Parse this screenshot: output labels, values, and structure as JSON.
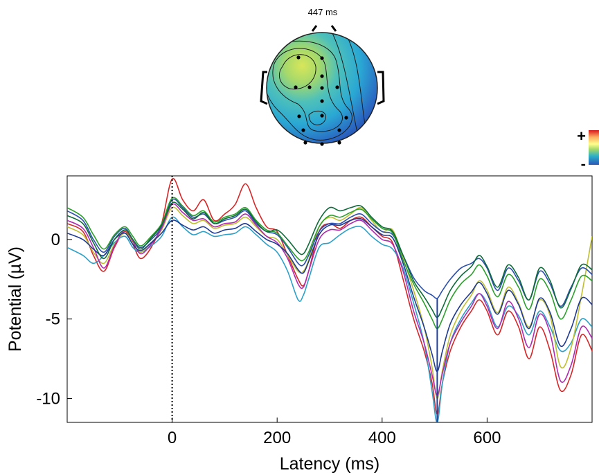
{
  "topomap": {
    "title": "447 ms",
    "electrodes": 16
  },
  "colorbar": {
    "plus_label": "+",
    "minus_label": "-",
    "colors": [
      "#d7191c",
      "#fdae61",
      "#ffff8c",
      "#a6d96a",
      "#2bb0c8",
      "#2c55b8"
    ]
  },
  "chart_data": {
    "type": "line",
    "title": "",
    "xlabel": "Latency (ms)",
    "ylabel": "Potential (µV)",
    "xlim": [
      -200,
      800
    ],
    "ylim": [
      -11.5,
      4
    ],
    "xticks": [
      0,
      200,
      400,
      600
    ],
    "yticks": [
      0,
      -5,
      -10
    ],
    "xtick_labels": [
      "0",
      "200",
      "400",
      "600"
    ],
    "ytick_labels": [
      "0",
      "-5",
      "-10"
    ],
    "grid": false,
    "legend": "none",
    "onset_marker_x": 0,
    "cursor_x": 505,
    "x": [
      -200,
      -170,
      -150,
      -130,
      -110,
      -90,
      -75,
      -60,
      -40,
      -20,
      0,
      20,
      40,
      60,
      80,
      100,
      120,
      140,
      160,
      180,
      200,
      220,
      240,
      250,
      260,
      280,
      300,
      320,
      340,
      360,
      380,
      400,
      420,
      440,
      460,
      480,
      495,
      505,
      515,
      530,
      550,
      570,
      585,
      600,
      620,
      640,
      660,
      680,
      700,
      720,
      740,
      760,
      780,
      800
    ],
    "series": [
      {
        "color": "#d62728",
        "values": [
          1.0,
          0.5,
          -1.0,
          -2.0,
          -0.5,
          0.5,
          -0.3,
          -1.2,
          -0.5,
          1.0,
          3.8,
          2.5,
          1.8,
          2.5,
          1.2,
          1.6,
          2.2,
          3.5,
          2.0,
          0.8,
          0.5,
          -1.0,
          -2.5,
          -2.9,
          -2.0,
          0.5,
          1.0,
          0.7,
          1.2,
          1.4,
          0.8,
          0.2,
          -0.2,
          -2.5,
          -5.0,
          -7.0,
          -9.0,
          -11.0,
          -9.0,
          -7.0,
          -5.5,
          -4.5,
          -3.8,
          -4.5,
          -6.0,
          -4.5,
          -5.5,
          -7.5,
          -5.5,
          -7.0,
          -9.5,
          -8.5,
          -6.0,
          -7.0
        ]
      },
      {
        "color": "#2ca0c8",
        "values": [
          -0.5,
          -1.0,
          -1.5,
          -1.0,
          -0.2,
          0.2,
          -0.5,
          -0.8,
          -0.4,
          0.2,
          1.4,
          0.8,
          0.3,
          0.5,
          0.2,
          0.3,
          0.4,
          0.8,
          0.3,
          -0.3,
          -0.8,
          -2.0,
          -3.8,
          -3.5,
          -2.5,
          -0.5,
          -0.2,
          0.3,
          0.7,
          0.8,
          0.2,
          -0.3,
          -0.6,
          -1.8,
          -4.0,
          -6.5,
          -9.5,
          -11.5,
          -9.0,
          -6.5,
          -5.0,
          -4.0,
          -3.4,
          -4.0,
          -5.5,
          -4.2,
          -4.8,
          -6.0,
          -4.5,
          -5.5,
          -7.0,
          -6.5,
          -5.0,
          -5.5
        ]
      },
      {
        "color": "#bfbf30",
        "values": [
          0.8,
          0.3,
          -0.8,
          -1.5,
          -0.3,
          0.4,
          -0.2,
          -0.8,
          -0.2,
          0.6,
          2.0,
          1.5,
          1.0,
          1.2,
          0.7,
          0.9,
          1.0,
          1.4,
          0.8,
          0.2,
          0.0,
          -1.0,
          -2.0,
          -2.0,
          -1.3,
          0.8,
          1.4,
          1.2,
          1.6,
          2.0,
          1.2,
          0.5,
          0.6,
          -1.2,
          -3.2,
          -5.5,
          -8.0,
          -10.0,
          -8.2,
          -6.0,
          -4.5,
          -3.5,
          -2.6,
          -3.2,
          -4.6,
          -3.0,
          -4.0,
          -5.5,
          -3.8,
          -4.8,
          -8.0,
          -6.8,
          -3.5,
          0.2
        ]
      },
      {
        "color": "#2a4fb0",
        "values": [
          1.8,
          1.2,
          0.0,
          -0.8,
          0.2,
          0.7,
          0.0,
          -0.5,
          0.0,
          0.8,
          2.5,
          2.0,
          1.4,
          1.6,
          1.0,
          1.2,
          1.4,
          1.8,
          1.0,
          0.5,
          0.3,
          -0.5,
          -1.5,
          -1.6,
          -1.0,
          0.5,
          1.0,
          1.0,
          1.4,
          1.6,
          1.0,
          0.5,
          0.3,
          -1.0,
          -2.4,
          -3.2,
          -3.5,
          -3.7,
          -3.2,
          -2.5,
          -1.8,
          -1.5,
          -1.2,
          -1.8,
          -3.2,
          -1.8,
          -2.6,
          -3.8,
          -2.0,
          -2.8,
          -4.2,
          -3.0,
          -1.8,
          -2.2
        ]
      },
      {
        "color": "#2ca02c",
        "values": [
          2.0,
          1.4,
          0.3,
          -0.6,
          0.3,
          0.8,
          0.2,
          -0.4,
          0.2,
          1.0,
          2.6,
          2.1,
          1.5,
          1.8,
          1.1,
          1.4,
          1.6,
          2.0,
          1.2,
          0.6,
          0.4,
          -0.4,
          -1.2,
          -1.3,
          -0.8,
          0.8,
          1.5,
          1.4,
          1.7,
          1.9,
          1.3,
          0.7,
          0.4,
          -1.3,
          -2.8,
          -4.0,
          -5.0,
          -5.6,
          -5.0,
          -3.8,
          -2.8,
          -2.2,
          -1.6,
          -2.3,
          -3.6,
          -2.2,
          -3.0,
          -4.4,
          -2.5,
          -3.3,
          -5.0,
          -3.8,
          -2.3,
          -2.6
        ]
      },
      {
        "color": "#b02ab0",
        "values": [
          1.2,
          0.7,
          -0.5,
          -1.8,
          -0.4,
          0.6,
          -0.1,
          -0.9,
          -0.3,
          0.7,
          2.2,
          1.7,
          1.2,
          1.3,
          0.8,
          1.0,
          1.1,
          1.6,
          0.9,
          0.2,
          -0.2,
          -1.2,
          -2.8,
          -3.0,
          -2.0,
          0.0,
          0.6,
          0.6,
          1.0,
          1.2,
          0.6,
          0.0,
          -0.3,
          -2.0,
          -4.5,
          -6.5,
          -8.5,
          -9.8,
          -8.4,
          -6.5,
          -5.2,
          -4.2,
          -3.4,
          -4.2,
          -5.6,
          -3.9,
          -5.0,
          -6.8,
          -4.7,
          -5.9,
          -8.9,
          -7.9,
          -5.5,
          -6.2
        ]
      },
      {
        "color": "#1f3a93",
        "values": [
          0.4,
          0.0,
          -0.6,
          -1.0,
          0.0,
          0.4,
          -0.3,
          -0.7,
          -0.2,
          0.4,
          1.2,
          0.9,
          0.6,
          0.8,
          0.4,
          0.6,
          0.7,
          1.0,
          0.5,
          0.0,
          -0.3,
          -0.9,
          -1.9,
          -2.1,
          -1.4,
          0.3,
          0.9,
          0.9,
          1.2,
          1.3,
          0.8,
          0.3,
          0.1,
          -1.5,
          -3.6,
          -5.5,
          -7.2,
          -8.3,
          -7.0,
          -5.3,
          -4.1,
          -3.3,
          -2.7,
          -3.4,
          -4.7,
          -3.2,
          -4.1,
          -5.6,
          -3.7,
          -4.6,
          -6.7,
          -5.6,
          -3.7,
          -4.1
        ]
      },
      {
        "color": "#0f6b3a",
        "values": [
          1.5,
          1.0,
          -0.2,
          -1.2,
          0.0,
          0.6,
          0.0,
          -0.6,
          0.1,
          0.9,
          2.3,
          1.9,
          1.3,
          1.7,
          1.0,
          1.3,
          1.5,
          1.9,
          1.1,
          0.5,
          0.6,
          0.0,
          -0.8,
          -0.9,
          -0.3,
          1.2,
          2.0,
          1.8,
          2.0,
          2.1,
          1.4,
          0.8,
          0.5,
          -1.0,
          -2.6,
          -3.6,
          -4.4,
          -4.9,
          -4.3,
          -3.2,
          -2.3,
          -1.7,
          -1.0,
          -1.7,
          -3.0,
          -1.6,
          -2.4,
          -3.8,
          -1.8,
          -2.6,
          -4.3,
          -3.1,
          -1.6,
          -1.9
        ]
      }
    ]
  }
}
